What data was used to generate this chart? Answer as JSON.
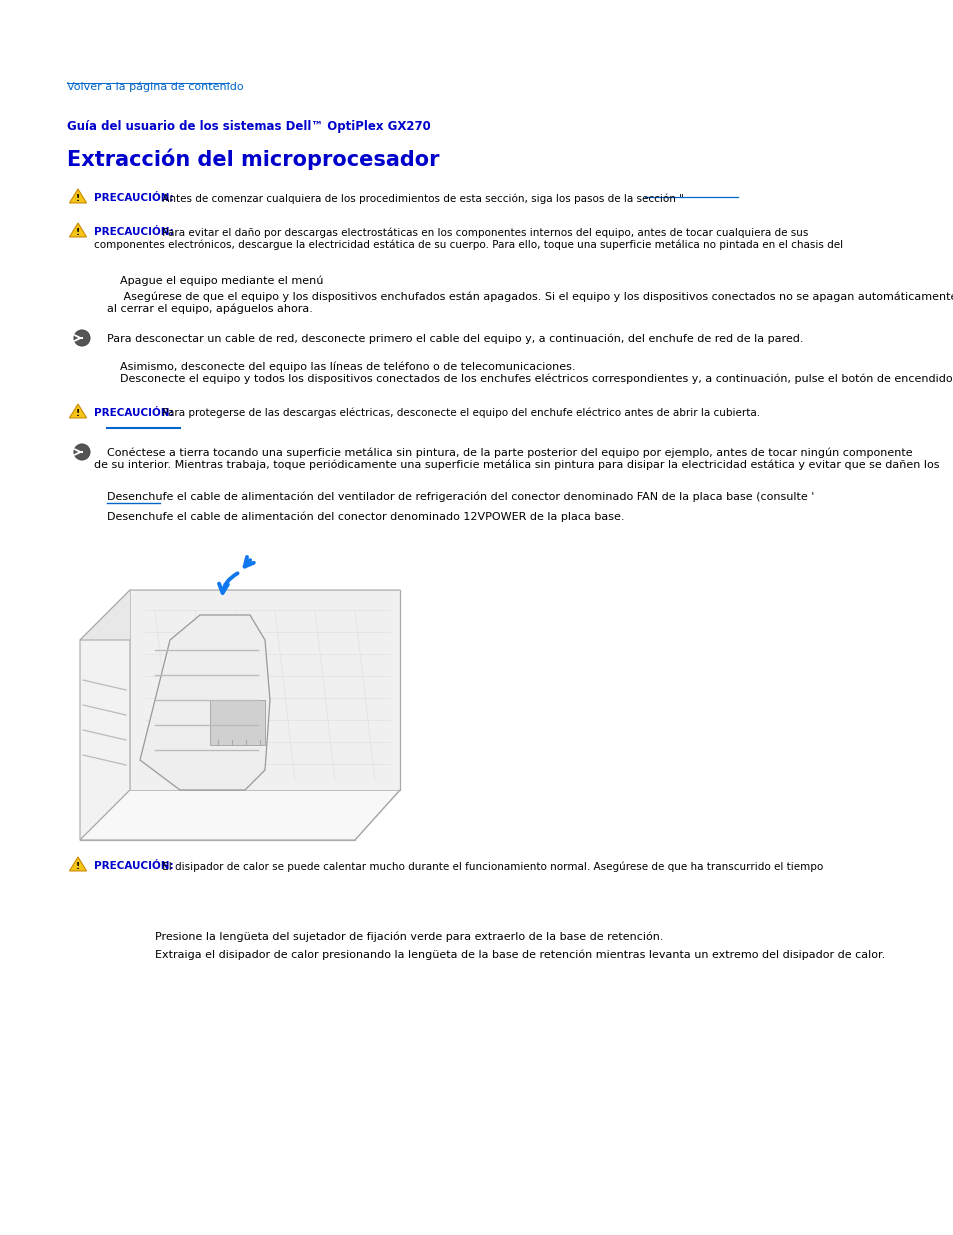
{
  "bg_color": "#ffffff",
  "link_color": "#0066cc",
  "title_color": "#0000cc",
  "bold_color": "#0000cc",
  "text_color": "#000000",
  "warn_fill": "#f5c518",
  "warn_edge": "#cc8800",
  "link_text": "Volver a la página de contenido",
  "guide_title": "Guía del usuario de los sistemas Dell™ OptiPlex GX270",
  "page_title": "Extracción del microprocesador",
  "prec1_bold": "PRECAUCIÓN:",
  "prec1_rest": " Antes de comenzar cualquiera de los procedimientos de esta sección, siga los pasos de la sección \"",
  "prec2_bold": "PRECAUCIÓN:",
  "prec2_line1": " Para evitar el daño por descargas electrostáticas en los componentes internos del equipo, antes de tocar cualquiera de sus",
  "prec2_line2": "componentes electrónicos, descargue la electricidad estática de su cuerpo. Para ello, toque una superficie metálica no pintada en el chasis del",
  "step1": "Apague el equipo mediante el menú",
  "step2_line1": " Asegúrese de que el equipo y los dispositivos enchufados están apagados. Si el equipo y los dispositivos conectados no se apagan automáticamente",
  "step2_line2": "al cerrar el equipo, apáguelos ahora.",
  "note1": "Para desconectar un cable de red, desconecte primero el cable del equipo y, a continuación, del enchufe de red de la pared.",
  "step3": "Asimismo, desconecte del equipo las líneas de teléfono o de telecomunicaciones.",
  "step4": "Desconecte el equipo y todos los dispositivos conectados de los enchufes eléctricos correspondientes y, a continuación, pulse el botón de encendido",
  "prec3_bold": "PRECAUCIÓN:",
  "prec3_rest": " Para protegerse de las descargas eléctricas, desconecte el equipo del enchufe eléctrico antes de abrir la cubierta.",
  "note2_line1": "Conéctese a tierra tocando una superficie metálica sin pintura, de la parte posterior del equipo por ejemplo, antes de tocar ningún componente",
  "note2_line2": "de su interior. Mientras trabaja, toque periódicamente una superficie metálica sin pintura para disipar la electricidad estática y evitar que se dañen los",
  "step5": "Desenchufe el cable de alimentación del ventilador de refrigeración del conector denominado FAN de la placa base (consulte '",
  "step6": "Desenchufe el cable de alimentación del conector denominado 12VPOWER de la placa base.",
  "prec4_bold": "PRECAUCIÓN:",
  "prec4_rest": " El disipador de calor se puede calentar mucho durante el funcionamiento normal. Asegúrese de que ha transcurrido el tiempo",
  "step7": "Presione la lengüeta del sujetador de fijación verde para extraerlo de la base de retención.",
  "step8": "Extraiga el disipador de calor presionando la lengüeta de la base de retención mientras levanta un extremo del disipador de calor."
}
